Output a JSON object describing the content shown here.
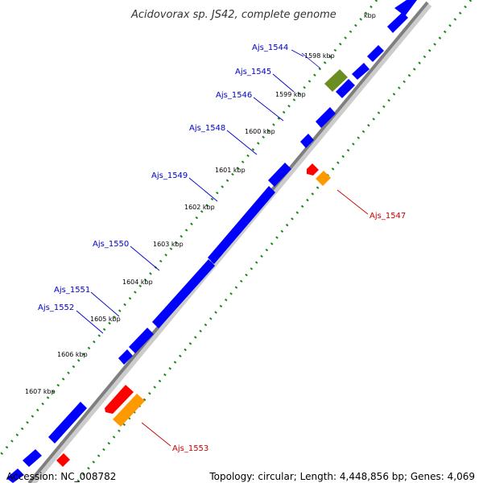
{
  "title": "Acidovorax sp. JS42, complete genome",
  "footer": {
    "accession": "Accession: NC_008782",
    "topology": "Topology: circular; Length: 4,448,856 bp; Genes: 4,069"
  },
  "colors": {
    "forward": "#0000ff",
    "reverse": "#ff0000",
    "rna": "#ff9900",
    "other": "#6b8e23",
    "backbone": "#888888",
    "dots": "#1a8a1a",
    "label_forward": "#0000c8",
    "label_reverse": "#c80000"
  },
  "ticks": [
    "kbp",
    "1598 kbp",
    "1599 kbp",
    "1600 kbp",
    "1601 kbp",
    "1602 kbp",
    "1603 kbp",
    "1604 kbp",
    "1605 kbp",
    "1606 kbp",
    "1607 kbp"
  ],
  "forward_labels": [
    "Ajs_1544",
    "Ajs_1545",
    "Ajs_1546",
    "Ajs_1548",
    "Ajs_1549",
    "Ajs_1550",
    "Ajs_1551",
    "Ajs_1552"
  ],
  "reverse_labels": [
    "Ajs_1547",
    "Ajs_1553"
  ]
}
